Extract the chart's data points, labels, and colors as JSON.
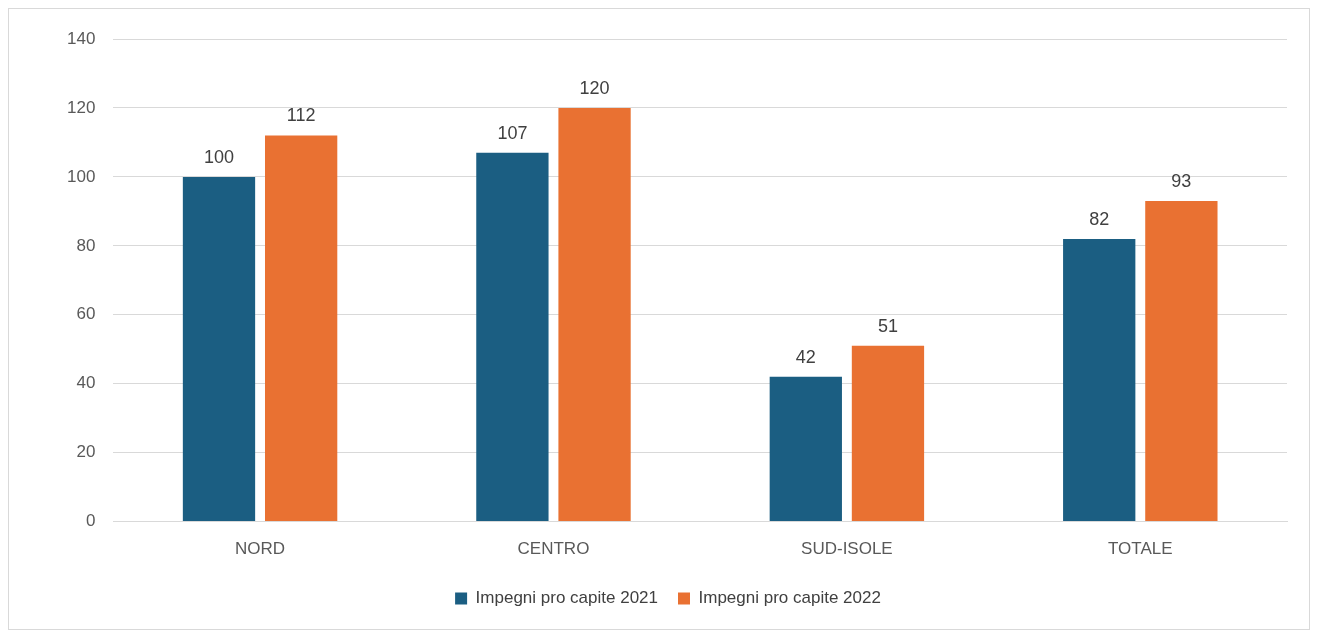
{
  "chart_data": {
    "type": "bar",
    "categories": [
      "NORD",
      "CENTRO",
      "SUD-ISOLE",
      "TOTALE"
    ],
    "series": [
      {
        "name": "Impegni pro capite 2021",
        "color": "#1b5e82",
        "values": [
          100,
          107,
          42,
          82
        ]
      },
      {
        "name": "Impegni pro capite 2022",
        "color": "#e97132",
        "values": [
          112,
          120,
          51,
          93
        ]
      }
    ],
    "ylim": [
      0,
      140
    ],
    "yticks": [
      0,
      20,
      40,
      60,
      80,
      100,
      120,
      140
    ],
    "grid": "y",
    "legend": "bottom",
    "data_labels": true
  }
}
